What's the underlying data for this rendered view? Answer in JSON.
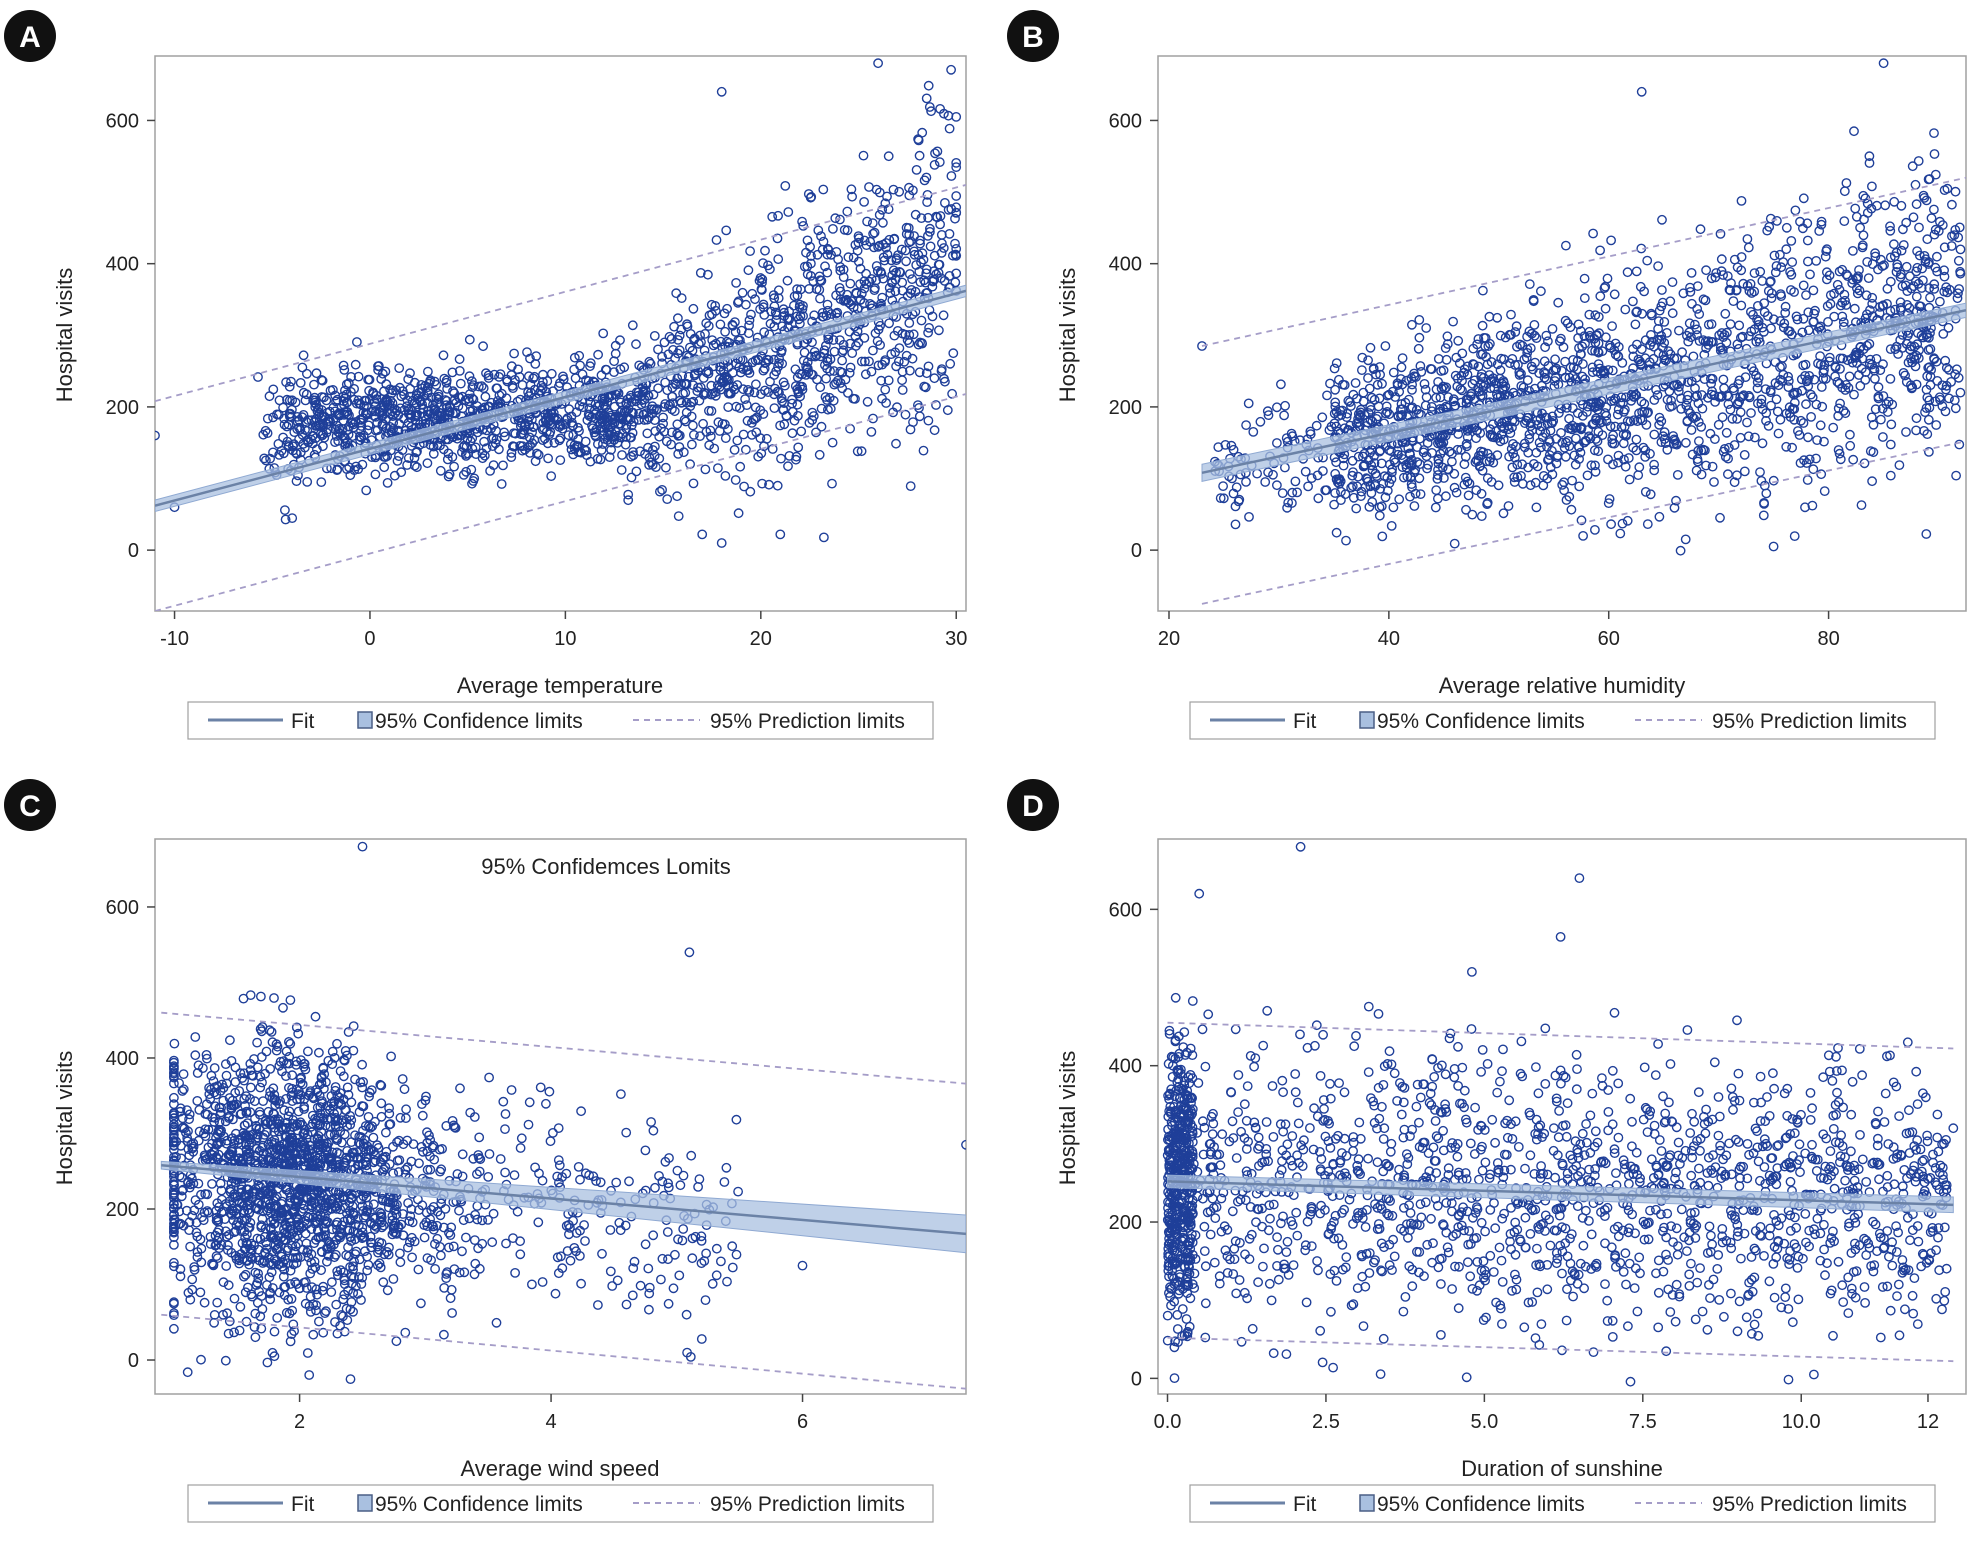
{
  "colors": {
    "marker": "#1f3f99",
    "fit": "#6b82a6",
    "band": "#a9c0e0",
    "band_edge": "#8fa9d2",
    "prediction": "#a59dc8",
    "frame": "#a0a0a0",
    "badge": "#111111"
  },
  "legend": {
    "fit": "Fit",
    "confidence": "95% Confidence limits",
    "prediction": "95% Prediction limits"
  },
  "chart_data": [
    {
      "type": "scatter",
      "panel": "A",
      "title": "",
      "xlabel": "Average temperature",
      "ylabel": "Hospital visits",
      "xlim": [
        -11,
        30.5
      ],
      "ylim": [
        -85,
        690
      ],
      "xticks": [
        -10,
        0,
        10,
        20,
        30
      ],
      "yticks": [
        0,
        200,
        400,
        600
      ],
      "fit": {
        "x": [
          -11,
          30.5
        ],
        "y": [
          62,
          362
        ]
      },
      "confidence_halfwidth": [
        8,
        8
      ],
      "prediction_upper": [
        208,
        510
      ],
      "prediction_lower": [
        -85,
        218
      ],
      "point_count": 2000,
      "points": {
        "x": [
          -11,
          -10,
          18,
          17,
          18,
          21,
          26,
          30
        ],
        "y": [
          160,
          60,
          640,
          22,
          10,
          22,
          680,
          605
        ]
      },
      "legend_position": "bottom"
    },
    {
      "type": "scatter",
      "panel": "B",
      "title": "",
      "xlabel": "Average relative humidity",
      "ylabel": "Hospital visits",
      "xlim": [
        19,
        92.5
      ],
      "ylim": [
        -85,
        690
      ],
      "xticks": [
        20,
        40,
        60,
        80
      ],
      "yticks": [
        0,
        200,
        400,
        600
      ],
      "fit": {
        "x": [
          23,
          92.5
        ],
        "y": [
          108,
          335
        ]
      },
      "confidence_halfwidth": [
        12,
        10
      ],
      "prediction_upper": [
        285,
        520
      ],
      "prediction_lower": [
        -75,
        152
      ],
      "point_count": 2000,
      "points": {
        "x": [
          23,
          63,
          85,
          75,
          67,
          92
        ],
        "y": [
          285,
          640,
          680,
          5,
          15,
          420
        ]
      },
      "legend_position": "bottom"
    },
    {
      "type": "scatter",
      "panel": "C",
      "title": "95% Confidemces Lomits",
      "xlabel": "Average wind speed",
      "ylabel": "Hospital visits",
      "xlim": [
        0.85,
        7.3
      ],
      "ylim": [
        -45,
        690
      ],
      "xticks": [
        2,
        4,
        6
      ],
      "yticks": [
        0,
        200,
        400,
        600
      ],
      "fit": {
        "x": [
          0.9,
          7.3
        ],
        "y": [
          258,
          167
        ]
      },
      "confidence_halfwidth": [
        5,
        25
      ],
      "prediction_upper": [
        460,
        366
      ],
      "prediction_lower": [
        60,
        -38
      ],
      "point_count": 2000,
      "points": {
        "x": [
          2.5,
          5.1,
          7.3,
          6.0,
          1.8
        ],
        "y": [
          680,
          540,
          285,
          125,
          5
        ]
      },
      "legend_position": "bottom"
    },
    {
      "type": "scatter",
      "panel": "D",
      "title": "",
      "xlabel": "Duration of sunshine",
      "ylabel": "Hospital visits",
      "xlim": [
        -0.15,
        12.6
      ],
      "ylim": [
        -20,
        690
      ],
      "xticks": [
        0.0,
        2.5,
        5.0,
        7.5,
        10.0,
        12
      ],
      "xtick_labels": [
        "0.0",
        "2.5",
        "5.0",
        "7.5",
        "10.0",
        "12"
      ],
      "yticks": [
        0,
        200,
        400,
        600
      ],
      "fit": {
        "x": [
          0,
          12.4
        ],
        "y": [
          252,
          222
        ]
      },
      "confidence_halfwidth": [
        8,
        10
      ],
      "prediction_upper": [
        455,
        422
      ],
      "prediction_lower": [
        52,
        22
      ],
      "point_count": 2000,
      "points": {
        "x": [
          2.1,
          6.5,
          10.2,
          12.4,
          0.5
        ],
        "y": [
          680,
          640,
          5,
          320,
          620
        ]
      },
      "legend_position": "bottom"
    }
  ]
}
